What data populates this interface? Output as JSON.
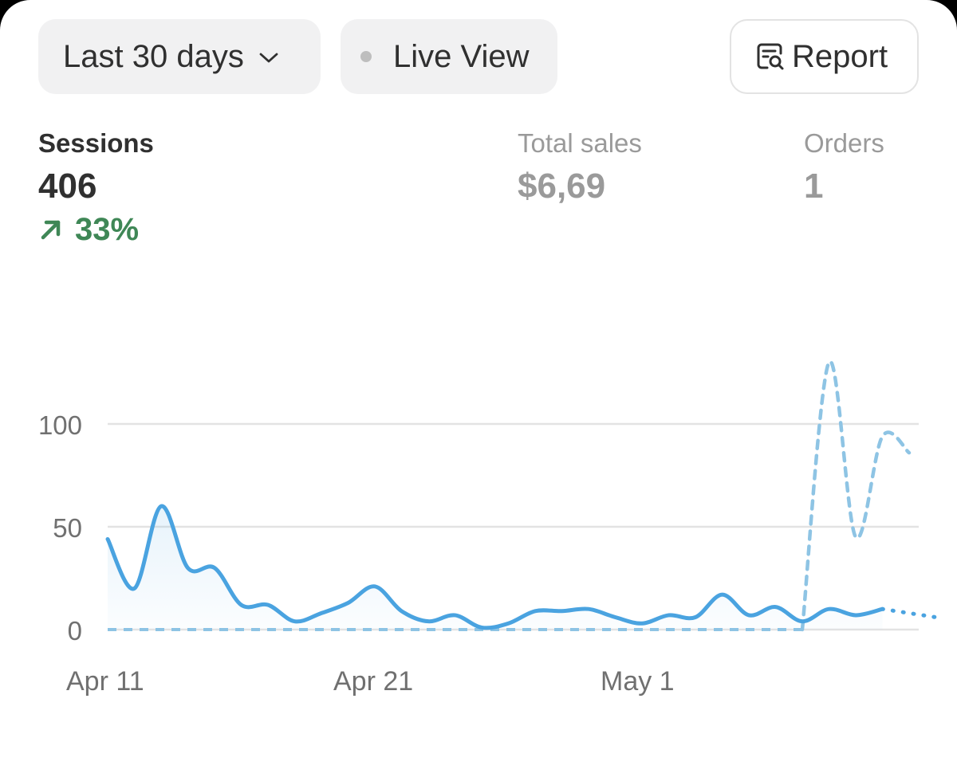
{
  "toolbar": {
    "date_range_label": "Last 30 days",
    "live_view_label": "Live View",
    "report_label": "Report"
  },
  "metrics": {
    "sessions": {
      "label": "Sessions",
      "value": "406",
      "change": "33%",
      "change_direction": "up"
    },
    "total_sales": {
      "label": "Total sales",
      "value": "$6,69"
    },
    "orders": {
      "label": "Orders",
      "value": "1"
    }
  },
  "colors": {
    "current_line": "#4aa3e0",
    "comparison_line": "#8ec4e4",
    "positive": "#3f8756",
    "grid": "#e3e3e3",
    "axis_text": "#707070"
  },
  "icons": {
    "date_range": "chevron-down-icon",
    "live_view": "status-dot-icon",
    "report": "report-search-icon",
    "change": "arrow-up-right-icon"
  },
  "chart_data": {
    "type": "line",
    "title": "",
    "xlabel": "",
    "ylabel": "",
    "ylim": [
      0,
      100
    ],
    "yticks": [
      0,
      50,
      100
    ],
    "x_tick_labels": [
      {
        "label": "Apr 11",
        "index": 0
      },
      {
        "label": "Apr 21",
        "index": 10
      },
      {
        "label": "May 1",
        "index": 20
      }
    ],
    "grid": true,
    "legend": "none",
    "series": [
      {
        "style": "solid",
        "area_fill": true,
        "values": [
          44,
          20,
          60,
          30,
          30,
          12,
          12,
          4,
          8,
          13,
          21,
          9,
          4,
          7,
          1,
          3,
          9,
          9,
          10,
          6,
          3,
          7,
          6,
          17,
          7,
          11,
          4,
          10,
          7,
          10
        ]
      },
      {
        "style": "dotted",
        "values": [
          8,
          6
        ]
      },
      {
        "style": "dashed",
        "values": [
          0,
          0,
          0,
          0,
          0,
          0,
          0,
          0,
          0,
          0,
          0,
          0,
          0,
          0,
          0,
          0,
          0,
          0,
          0,
          0,
          0,
          0,
          0,
          0,
          0,
          0,
          0
        ]
      },
      {
        "style": "dotted",
        "values": [
          0,
          130,
          45,
          94,
          86
        ]
      }
    ]
  }
}
